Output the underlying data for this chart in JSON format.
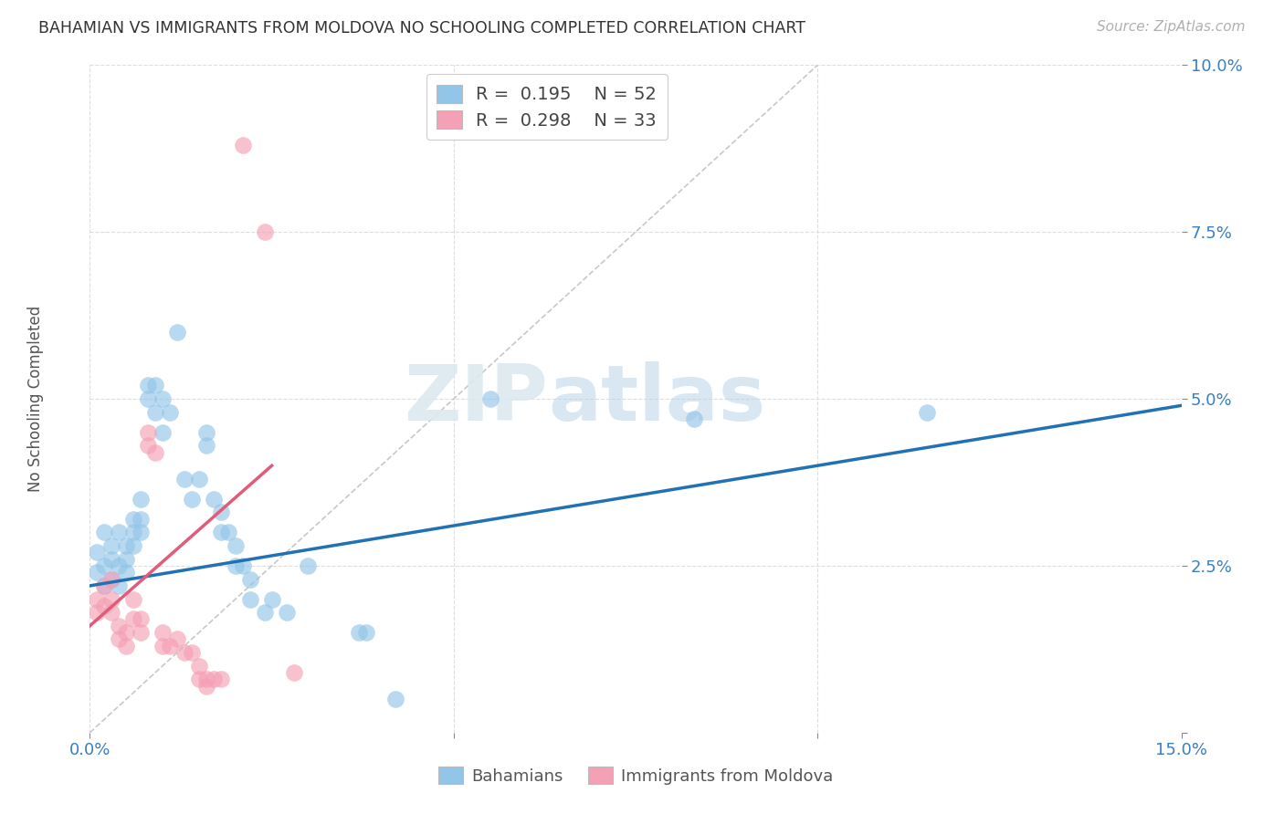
{
  "title": "BAHAMIAN VS IMMIGRANTS FROM MOLDOVA NO SCHOOLING COMPLETED CORRELATION CHART",
  "source": "Source: ZipAtlas.com",
  "ylabel": "No Schooling Completed",
  "xlim": [
    0.0,
    0.15
  ],
  "ylim": [
    0.0,
    0.1
  ],
  "watermark_zip": "ZIP",
  "watermark_atlas": "atlas",
  "blue_color": "#92c5e8",
  "pink_color": "#f4a0b5",
  "blue_line_color": "#2171b5",
  "pink_line_color": "#e05c7a",
  "diagonal_color": "#c8c8c8",
  "blue_scatter": [
    [
      0.001,
      0.027
    ],
    [
      0.001,
      0.024
    ],
    [
      0.002,
      0.025
    ],
    [
      0.002,
      0.022
    ],
    [
      0.002,
      0.03
    ],
    [
      0.003,
      0.028
    ],
    [
      0.003,
      0.026
    ],
    [
      0.003,
      0.023
    ],
    [
      0.004,
      0.03
    ],
    [
      0.004,
      0.025
    ],
    [
      0.004,
      0.022
    ],
    [
      0.005,
      0.028
    ],
    [
      0.005,
      0.026
    ],
    [
      0.005,
      0.024
    ],
    [
      0.006,
      0.032
    ],
    [
      0.006,
      0.03
    ],
    [
      0.006,
      0.028
    ],
    [
      0.007,
      0.035
    ],
    [
      0.007,
      0.032
    ],
    [
      0.007,
      0.03
    ],
    [
      0.008,
      0.052
    ],
    [
      0.008,
      0.05
    ],
    [
      0.009,
      0.052
    ],
    [
      0.009,
      0.048
    ],
    [
      0.01,
      0.05
    ],
    [
      0.01,
      0.045
    ],
    [
      0.011,
      0.048
    ],
    [
      0.012,
      0.06
    ],
    [
      0.013,
      0.038
    ],
    [
      0.014,
      0.035
    ],
    [
      0.015,
      0.038
    ],
    [
      0.016,
      0.045
    ],
    [
      0.016,
      0.043
    ],
    [
      0.017,
      0.035
    ],
    [
      0.018,
      0.033
    ],
    [
      0.018,
      0.03
    ],
    [
      0.019,
      0.03
    ],
    [
      0.02,
      0.028
    ],
    [
      0.02,
      0.025
    ],
    [
      0.021,
      0.025
    ],
    [
      0.022,
      0.023
    ],
    [
      0.022,
      0.02
    ],
    [
      0.024,
      0.018
    ],
    [
      0.025,
      0.02
    ],
    [
      0.027,
      0.018
    ],
    [
      0.03,
      0.025
    ],
    [
      0.037,
      0.015
    ],
    [
      0.038,
      0.015
    ],
    [
      0.042,
      0.005
    ],
    [
      0.055,
      0.05
    ],
    [
      0.083,
      0.047
    ],
    [
      0.115,
      0.048
    ]
  ],
  "pink_scatter": [
    [
      0.001,
      0.02
    ],
    [
      0.001,
      0.018
    ],
    [
      0.002,
      0.022
    ],
    [
      0.002,
      0.019
    ],
    [
      0.003,
      0.023
    ],
    [
      0.003,
      0.02
    ],
    [
      0.003,
      0.018
    ],
    [
      0.004,
      0.016
    ],
    [
      0.004,
      0.014
    ],
    [
      0.005,
      0.015
    ],
    [
      0.005,
      0.013
    ],
    [
      0.006,
      0.02
    ],
    [
      0.006,
      0.017
    ],
    [
      0.007,
      0.017
    ],
    [
      0.007,
      0.015
    ],
    [
      0.008,
      0.043
    ],
    [
      0.008,
      0.045
    ],
    [
      0.009,
      0.042
    ],
    [
      0.01,
      0.015
    ],
    [
      0.01,
      0.013
    ],
    [
      0.011,
      0.013
    ],
    [
      0.012,
      0.014
    ],
    [
      0.013,
      0.012
    ],
    [
      0.014,
      0.012
    ],
    [
      0.015,
      0.01
    ],
    [
      0.015,
      0.008
    ],
    [
      0.016,
      0.008
    ],
    [
      0.016,
      0.007
    ],
    [
      0.017,
      0.008
    ],
    [
      0.018,
      0.008
    ],
    [
      0.021,
      0.088
    ],
    [
      0.024,
      0.075
    ],
    [
      0.028,
      0.009
    ]
  ],
  "blue_line_x": [
    0.0,
    0.15
  ],
  "blue_line_y": [
    0.022,
    0.049
  ],
  "pink_line_x": [
    0.0,
    0.025
  ],
  "pink_line_y": [
    0.016,
    0.04
  ],
  "diag_line_x": [
    0.0,
    0.1
  ],
  "diag_line_y": [
    0.0,
    0.1
  ]
}
